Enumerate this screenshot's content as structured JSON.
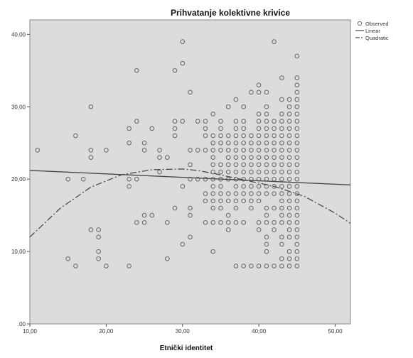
{
  "chart_data": {
    "type": "scatter",
    "title": "Prihvatanje kolektivne krivice",
    "xlabel": "Etnički identitet",
    "ylabel": "",
    "xlim": [
      10,
      52
    ],
    "ylim": [
      0,
      42
    ],
    "x_ticks": [
      "10,00",
      "20,00",
      "30,00",
      "40,00",
      "50,00"
    ],
    "y_ticks": [
      ".00",
      "10,00",
      "20,00",
      "30,00",
      "40,00"
    ],
    "grid": false,
    "legend_position": "right",
    "colors": {
      "plot_background": "#dcdcdc",
      "markers": "#6e6e6e",
      "lines": "#4a4a4a"
    },
    "series": [
      {
        "name": "Observed",
        "kind": "points",
        "points": [
          [
            11,
            24
          ],
          [
            15,
            9
          ],
          [
            15,
            20
          ],
          [
            16,
            8
          ],
          [
            16,
            26
          ],
          [
            17,
            20
          ],
          [
            18,
            13
          ],
          [
            18,
            23
          ],
          [
            18,
            24
          ],
          [
            18,
            30
          ],
          [
            19,
            9
          ],
          [
            19,
            10
          ],
          [
            19,
            12
          ],
          [
            19,
            13
          ],
          [
            20,
            8
          ],
          [
            20,
            24
          ],
          [
            23,
            8
          ],
          [
            23,
            19
          ],
          [
            23,
            20
          ],
          [
            23,
            25
          ],
          [
            23,
            27
          ],
          [
            24,
            14
          ],
          [
            24,
            20
          ],
          [
            24,
            28
          ],
          [
            24,
            35
          ],
          [
            25,
            14
          ],
          [
            25,
            15
          ],
          [
            25,
            24
          ],
          [
            25,
            25
          ],
          [
            26,
            15
          ],
          [
            26,
            27
          ],
          [
            27,
            21
          ],
          [
            27,
            23
          ],
          [
            27,
            24
          ],
          [
            28,
            9
          ],
          [
            28,
            14
          ],
          [
            28,
            23
          ],
          [
            29,
            16
          ],
          [
            29,
            26
          ],
          [
            29,
            27
          ],
          [
            29,
            28
          ],
          [
            29,
            35
          ],
          [
            30,
            11
          ],
          [
            30,
            19
          ],
          [
            30,
            28
          ],
          [
            30,
            36
          ],
          [
            30,
            39
          ],
          [
            31,
            12
          ],
          [
            31,
            15
          ],
          [
            31,
            16
          ],
          [
            31,
            20
          ],
          [
            31,
            22
          ],
          [
            31,
            24
          ],
          [
            31,
            32
          ],
          [
            32,
            20
          ],
          [
            32,
            24
          ],
          [
            32,
            28
          ],
          [
            33,
            14
          ],
          [
            33,
            17
          ],
          [
            33,
            18
          ],
          [
            33,
            20
          ],
          [
            33,
            24
          ],
          [
            33,
            26
          ],
          [
            33,
            27
          ],
          [
            33,
            28
          ],
          [
            34,
            10
          ],
          [
            34,
            14
          ],
          [
            34,
            16
          ],
          [
            34,
            17
          ],
          [
            34,
            18
          ],
          [
            34,
            19
          ],
          [
            34,
            20
          ],
          [
            34,
            21
          ],
          [
            34,
            22
          ],
          [
            34,
            23
          ],
          [
            34,
            24
          ],
          [
            34,
            25
          ],
          [
            34,
            26
          ],
          [
            34,
            29
          ],
          [
            35,
            14
          ],
          [
            35,
            16
          ],
          [
            35,
            17
          ],
          [
            35,
            18
          ],
          [
            35,
            19
          ],
          [
            35,
            20
          ],
          [
            35,
            21
          ],
          [
            35,
            22
          ],
          [
            35,
            24
          ],
          [
            35,
            25
          ],
          [
            35,
            26
          ],
          [
            35,
            27
          ],
          [
            35,
            28
          ],
          [
            36,
            13
          ],
          [
            36,
            14
          ],
          [
            36,
            15
          ],
          [
            36,
            17
          ],
          [
            36,
            18
          ],
          [
            36,
            20
          ],
          [
            36,
            21
          ],
          [
            36,
            22
          ],
          [
            36,
            23
          ],
          [
            36,
            24
          ],
          [
            36,
            25
          ],
          [
            36,
            26
          ],
          [
            36,
            30
          ],
          [
            37,
            8
          ],
          [
            37,
            14
          ],
          [
            37,
            16
          ],
          [
            37,
            17
          ],
          [
            37,
            18
          ],
          [
            37,
            19
          ],
          [
            37,
            20
          ],
          [
            37,
            21
          ],
          [
            37,
            22
          ],
          [
            37,
            23
          ],
          [
            37,
            24
          ],
          [
            37,
            25
          ],
          [
            37,
            26
          ],
          [
            37,
            27
          ],
          [
            37,
            28
          ],
          [
            37,
            31
          ],
          [
            38,
            8
          ],
          [
            38,
            14
          ],
          [
            38,
            17
          ],
          [
            38,
            18
          ],
          [
            38,
            19
          ],
          [
            38,
            20
          ],
          [
            38,
            21
          ],
          [
            38,
            22
          ],
          [
            38,
            23
          ],
          [
            38,
            24
          ],
          [
            38,
            25
          ],
          [
            38,
            26
          ],
          [
            38,
            27
          ],
          [
            38,
            28
          ],
          [
            38,
            30
          ],
          [
            39,
            8
          ],
          [
            39,
            16
          ],
          [
            39,
            17
          ],
          [
            39,
            18
          ],
          [
            39,
            19
          ],
          [
            39,
            20
          ],
          [
            39,
            21
          ],
          [
            39,
            22
          ],
          [
            39,
            23
          ],
          [
            39,
            24
          ],
          [
            39,
            25
          ],
          [
            39,
            26
          ],
          [
            39,
            32
          ],
          [
            40,
            8
          ],
          [
            40,
            13
          ],
          [
            40,
            14
          ],
          [
            40,
            17
          ],
          [
            40,
            18
          ],
          [
            40,
            19
          ],
          [
            40,
            20
          ],
          [
            40,
            21
          ],
          [
            40,
            22
          ],
          [
            40,
            23
          ],
          [
            40,
            24
          ],
          [
            40,
            25
          ],
          [
            40,
            26
          ],
          [
            40,
            27
          ],
          [
            40,
            28
          ],
          [
            40,
            29
          ],
          [
            40,
            32
          ],
          [
            40,
            33
          ],
          [
            41,
            8
          ],
          [
            41,
            10
          ],
          [
            41,
            11
          ],
          [
            41,
            12
          ],
          [
            41,
            14
          ],
          [
            41,
            15
          ],
          [
            41,
            16
          ],
          [
            41,
            18
          ],
          [
            41,
            19
          ],
          [
            41,
            20
          ],
          [
            41,
            21
          ],
          [
            41,
            22
          ],
          [
            41,
            23
          ],
          [
            41,
            24
          ],
          [
            41,
            25
          ],
          [
            41,
            26
          ],
          [
            41,
            27
          ],
          [
            41,
            28
          ],
          [
            41,
            29
          ],
          [
            41,
            30
          ],
          [
            41,
            32
          ],
          [
            42,
            8
          ],
          [
            42,
            13
          ],
          [
            42,
            14
          ],
          [
            42,
            16
          ],
          [
            42,
            18
          ],
          [
            42,
            19
          ],
          [
            42,
            20
          ],
          [
            42,
            21
          ],
          [
            42,
            22
          ],
          [
            42,
            23
          ],
          [
            42,
            24
          ],
          [
            42,
            25
          ],
          [
            42,
            26
          ],
          [
            42,
            27
          ],
          [
            42,
            28
          ],
          [
            42,
            39
          ],
          [
            43,
            8
          ],
          [
            43,
            9
          ],
          [
            43,
            11
          ],
          [
            43,
            12
          ],
          [
            43,
            14
          ],
          [
            43,
            15
          ],
          [
            43,
            16
          ],
          [
            43,
            17
          ],
          [
            43,
            18
          ],
          [
            43,
            19
          ],
          [
            43,
            20
          ],
          [
            43,
            21
          ],
          [
            43,
            22
          ],
          [
            43,
            23
          ],
          [
            43,
            24
          ],
          [
            43,
            25
          ],
          [
            43,
            26
          ],
          [
            43,
            27
          ],
          [
            43,
            28
          ],
          [
            43,
            29
          ],
          [
            43,
            31
          ],
          [
            43,
            34
          ],
          [
            44,
            8
          ],
          [
            44,
            9
          ],
          [
            44,
            10
          ],
          [
            44,
            12
          ],
          [
            44,
            13
          ],
          [
            44,
            14
          ],
          [
            44,
            15
          ],
          [
            44,
            16
          ],
          [
            44,
            17
          ],
          [
            44,
            18
          ],
          [
            44,
            19
          ],
          [
            44,
            20
          ],
          [
            44,
            21
          ],
          [
            44,
            22
          ],
          [
            44,
            23
          ],
          [
            44,
            24
          ],
          [
            44,
            25
          ],
          [
            44,
            26
          ],
          [
            44,
            27
          ],
          [
            44,
            28
          ],
          [
            44,
            29
          ],
          [
            44,
            30
          ],
          [
            44,
            31
          ],
          [
            45,
            8
          ],
          [
            45,
            9
          ],
          [
            45,
            10
          ],
          [
            45,
            11
          ],
          [
            45,
            12
          ],
          [
            45,
            13
          ],
          [
            45,
            14
          ],
          [
            45,
            15
          ],
          [
            45,
            16
          ],
          [
            45,
            17
          ],
          [
            45,
            18
          ],
          [
            45,
            19
          ],
          [
            45,
            20
          ],
          [
            45,
            21
          ],
          [
            45,
            22
          ],
          [
            45,
            23
          ],
          [
            45,
            24
          ],
          [
            45,
            25
          ],
          [
            45,
            26
          ],
          [
            45,
            27
          ],
          [
            45,
            28
          ],
          [
            45,
            29
          ],
          [
            45,
            30
          ],
          [
            45,
            31
          ],
          [
            45,
            32
          ],
          [
            45,
            33
          ],
          [
            45,
            34
          ],
          [
            45,
            37
          ]
        ]
      },
      {
        "name": "Linear",
        "kind": "line",
        "x": [
          10,
          52
        ],
        "y": [
          21.2,
          19.2
        ]
      },
      {
        "name": "Quadratic",
        "kind": "curve",
        "x": [
          10,
          14,
          18,
          22,
          26,
          30,
          32,
          34,
          38,
          42,
          46,
          50,
          52
        ],
        "y": [
          12.0,
          16.0,
          18.9,
          20.6,
          21.3,
          21.4,
          21.2,
          20.8,
          19.9,
          19.0,
          17.6,
          15.3,
          13.9
        ]
      }
    ]
  }
}
